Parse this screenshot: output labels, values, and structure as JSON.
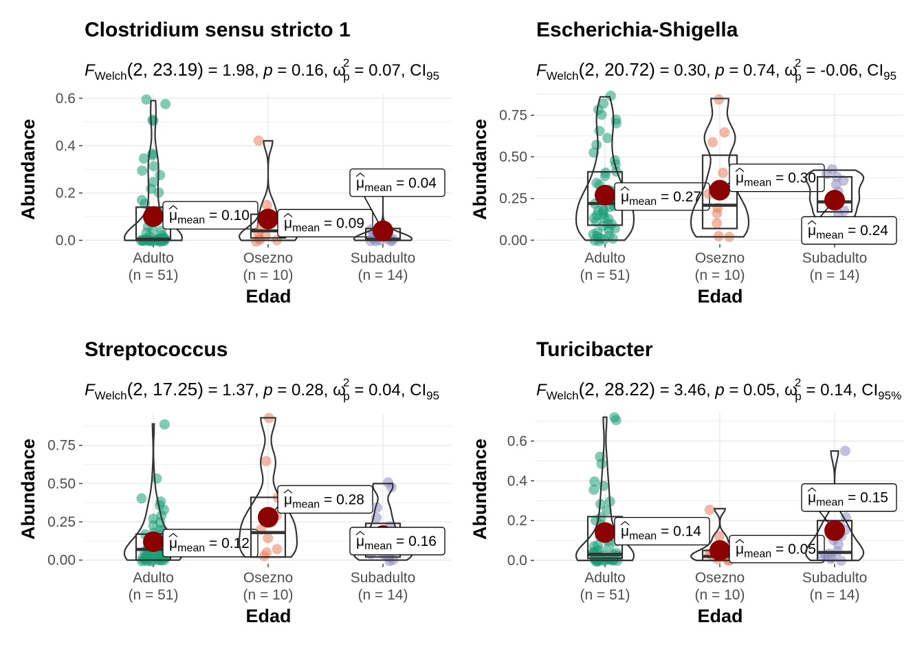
{
  "chart_data": [
    {
      "type": "violin-box-scatter",
      "title": "Clostridium sensu stricto 1",
      "subtitle": {
        "prefix": "F",
        "prefix_sub": "Welch",
        "df": "(2, 23.19)",
        "stat": " = 1.98, ",
        "p_label": "p",
        "p_text": " = 0.16, ",
        "omega": "ω",
        "omega_sup": "2",
        "omega_sub": "p",
        "omega_text": " = 0.07, CI",
        "ci_sub": "95"
      },
      "xlabel": "Edad",
      "ylabel": "Abundance",
      "categories": [
        {
          "name": "Adulto",
          "n_label": "(n = 51)"
        },
        {
          "name": "Osezno",
          "n_label": "(n = 10)"
        },
        {
          "name": "Subadulto",
          "n_label": "(n = 14)"
        }
      ],
      "ylim": [
        -0.01,
        0.62
      ],
      "yticks": [
        {
          "value": 0,
          "label": "0.0"
        },
        {
          "value": 0.2,
          "label": "0.2"
        },
        {
          "value": 0.4,
          "label": "0.4"
        },
        {
          "value": 0.6,
          "label": "0.6"
        }
      ],
      "means": [
        0.1,
        0.09,
        0.04
      ],
      "mean_labels": [
        {
          "mu": "μ",
          "sub": "mean",
          "text": " = 0.10"
        },
        {
          "mu": "μ",
          "sub": "mean",
          "text": " = 0.09"
        },
        {
          "mu": "μ",
          "sub": "mean",
          "text": " = 0.04"
        }
      ],
      "box": [
        {
          "q1": 0.0,
          "median": 0.005,
          "q3": 0.14
        },
        {
          "q1": 0.01,
          "median": 0.04,
          "q3": 0.11
        },
        {
          "q1": 0.0,
          "median": 0.005,
          "q3": 0.05
        }
      ],
      "points": [
        [
          0.59,
          0.58,
          0.51,
          0.5,
          0.37,
          0.36,
          0.34,
          0.31,
          0.3,
          0.28,
          0.25,
          0.22,
          0.2,
          0.17,
          0.15,
          0.12,
          0.1,
          0.08,
          0.06,
          0.05,
          0.04,
          0.03,
          0.02,
          0.02,
          0.01,
          0.01,
          0.01,
          0.005,
          0.005,
          0.005,
          0.003,
          0.003,
          0.002,
          0.002,
          0.002,
          0.001,
          0.001,
          0.001,
          0.001,
          0,
          0,
          0,
          0,
          0,
          0,
          0,
          0,
          0,
          0,
          0,
          0
        ],
        [
          0.42,
          0.15,
          0.1,
          0.05,
          0.03,
          0.02,
          0.01,
          0.005,
          0.0,
          0.0
        ],
        [
          0.25,
          0.05,
          0.03,
          0.02,
          0.01,
          0.01,
          0.005,
          0.003,
          0.002,
          0.001,
          0,
          0,
          0,
          0
        ]
      ]
    },
    {
      "type": "violin-box-scatter",
      "title": "Escherichia-Shigella",
      "subtitle": {
        "prefix": "F",
        "prefix_sub": "Welch",
        "df": "(2, 20.72)",
        "stat": " = 0.30, ",
        "p_label": "p",
        "p_text": " = 0.74, ",
        "omega": "ω",
        "omega_sup": "2",
        "omega_sub": "p",
        "omega_text": " = -0.06, CI",
        "ci_sub": "95"
      },
      "xlabel": "Edad",
      "ylabel": "Abundance",
      "categories": [
        {
          "name": "Adulto",
          "n_label": "(n = 51)"
        },
        {
          "name": "Osezno",
          "n_label": "(n = 10)"
        },
        {
          "name": "Subadulto",
          "n_label": "(n = 14)"
        }
      ],
      "ylim": [
        -0.015,
        0.88
      ],
      "yticks": [
        {
          "value": 0,
          "label": "0.00"
        },
        {
          "value": 0.25,
          "label": "0.25"
        },
        {
          "value": 0.5,
          "label": "0.50"
        },
        {
          "value": 0.75,
          "label": "0.75"
        }
      ],
      "means": [
        0.27,
        0.3,
        0.24
      ],
      "mean_labels": [
        {
          "mu": "μ",
          "sub": "mean",
          "text": " = 0.27"
        },
        {
          "mu": "μ",
          "sub": "mean",
          "text": " = 0.30"
        },
        {
          "mu": "μ",
          "sub": "mean",
          "text": " = 0.24"
        }
      ],
      "box": [
        {
          "q1": 0.09,
          "median": 0.22,
          "q3": 0.41
        },
        {
          "q1": 0.07,
          "median": 0.21,
          "q3": 0.51
        },
        {
          "q1": 0.17,
          "median": 0.23,
          "q3": 0.38
        }
      ],
      "points": [
        [
          0.86,
          0.82,
          0.78,
          0.75,
          0.72,
          0.7,
          0.66,
          0.62,
          0.58,
          0.52,
          0.48,
          0.45,
          0.42,
          0.4,
          0.38,
          0.35,
          0.33,
          0.31,
          0.3,
          0.28,
          0.27,
          0.26,
          0.25,
          0.24,
          0.23,
          0.22,
          0.21,
          0.2,
          0.19,
          0.18,
          0.17,
          0.16,
          0.15,
          0.14,
          0.13,
          0.12,
          0.11,
          0.1,
          0.09,
          0.08,
          0.07,
          0.06,
          0.05,
          0.04,
          0.03,
          0.02,
          0.02,
          0.01,
          0.01,
          0.0,
          0.0
        ],
        [
          0.85,
          0.65,
          0.58,
          0.4,
          0.28,
          0.2,
          0.16,
          0.1,
          0.03,
          0.02
        ],
        [
          0.42,
          0.4,
          0.38,
          0.36,
          0.33,
          0.3,
          0.27,
          0.24,
          0.22,
          0.18,
          0.15,
          0.12,
          0.05,
          0.0
        ]
      ]
    },
    {
      "type": "violin-box-scatter",
      "title": "Streptococcus",
      "subtitle": {
        "prefix": "F",
        "prefix_sub": "Welch",
        "df": "(2, 17.25)",
        "stat": " = 1.37, ",
        "p_label": "p",
        "p_text": " = 0.28, ",
        "omega": "ω",
        "omega_sup": "2",
        "omega_sub": "p",
        "omega_text": " = 0.04, CI",
        "ci_sub": "95"
      },
      "xlabel": "Edad",
      "ylabel": "Abundance",
      "categories": [
        {
          "name": "Adulto",
          "n_label": "(n = 51)"
        },
        {
          "name": "Osezno",
          "n_label": "(n = 10)"
        },
        {
          "name": "Subadulto",
          "n_label": "(n = 14)"
        }
      ],
      "ylim": [
        -0.015,
        0.96
      ],
      "yticks": [
        {
          "value": 0,
          "label": "0.00"
        },
        {
          "value": 0.25,
          "label": "0.25"
        },
        {
          "value": 0.5,
          "label": "0.50"
        },
        {
          "value": 0.75,
          "label": "0.75"
        }
      ],
      "means": [
        0.12,
        0.28,
        0.16
      ],
      "mean_labels": [
        {
          "mu": "μ",
          "sub": "mean",
          "text": " = 0.12"
        },
        {
          "mu": "μ",
          "sub": "mean",
          "text": " = 0.28"
        },
        {
          "mu": "μ",
          "sub": "mean",
          "text": " = 0.16"
        }
      ],
      "box": [
        {
          "q1": 0.0,
          "median": 0.07,
          "q3": 0.17
        },
        {
          "q1": 0.02,
          "median": 0.18,
          "q3": 0.41
        },
        {
          "q1": 0.02,
          "median": 0.08,
          "q3": 0.24
        }
      ],
      "points": [
        [
          0.89,
          0.54,
          0.4,
          0.38,
          0.35,
          0.32,
          0.3,
          0.27,
          0.25,
          0.22,
          0.2,
          0.19,
          0.17,
          0.16,
          0.15,
          0.14,
          0.13,
          0.12,
          0.11,
          0.1,
          0.09,
          0.08,
          0.08,
          0.07,
          0.07,
          0.06,
          0.06,
          0.05,
          0.05,
          0.04,
          0.04,
          0.03,
          0.03,
          0.03,
          0.02,
          0.02,
          0.02,
          0.01,
          0.01,
          0.01,
          0.01,
          0,
          0,
          0,
          0,
          0,
          0,
          0,
          0,
          0,
          0
        ],
        [
          0.93,
          0.64,
          0.4,
          0.3,
          0.25,
          0.2,
          0.15,
          0.08,
          0.04,
          0.02
        ],
        [
          0.5,
          0.47,
          0.35,
          0.28,
          0.22,
          0.18,
          0.14,
          0.1,
          0.08,
          0.05,
          0.03,
          0.02,
          0.01,
          0.0
        ]
      ]
    },
    {
      "type": "violin-box-scatter",
      "title": "Turicibacter",
      "subtitle": {
        "prefix": "F",
        "prefix_sub": "Welch",
        "df": "(2, 28.22)",
        "stat": " = 3.46, ",
        "p_label": "p",
        "p_text": " = 0.05, ",
        "omega": "ω",
        "omega_sup": "2",
        "omega_sub": "p",
        "omega_text": " = 0.14, CI",
        "ci_sub": "95%"
      },
      "xlabel": "Edad",
      "ylabel": "Abundance",
      "categories": [
        {
          "name": "Adulto",
          "n_label": "(n = 51)"
        },
        {
          "name": "Osezno",
          "n_label": "(n = 10)"
        },
        {
          "name": "Subadulto",
          "n_label": "(n = 14)"
        }
      ],
      "ylim": [
        -0.01,
        0.74
      ],
      "yticks": [
        {
          "value": 0,
          "label": "0.0"
        },
        {
          "value": 0.2,
          "label": "0.2"
        },
        {
          "value": 0.4,
          "label": "0.4"
        },
        {
          "value": 0.6,
          "label": "0.6"
        }
      ],
      "means": [
        0.14,
        0.05,
        0.15
      ],
      "mean_labels": [
        {
          "mu": "μ",
          "sub": "mean",
          "text": " = 0.14"
        },
        {
          "mu": "μ",
          "sub": "mean",
          "text": " = 0.05"
        },
        {
          "mu": "μ",
          "sub": "mean",
          "text": " = 0.15"
        }
      ],
      "box": [
        {
          "q1": 0.01,
          "median": 0.03,
          "q3": 0.22
        },
        {
          "q1": 0.0,
          "median": 0.02,
          "q3": 0.05
        },
        {
          "q1": 0.0,
          "median": 0.04,
          "q3": 0.2
        }
      ],
      "points": [
        [
          0.72,
          0.71,
          0.52,
          0.48,
          0.39,
          0.38,
          0.35,
          0.3,
          0.28,
          0.25,
          0.22,
          0.2,
          0.18,
          0.16,
          0.14,
          0.12,
          0.1,
          0.09,
          0.08,
          0.07,
          0.06,
          0.05,
          0.05,
          0.04,
          0.04,
          0.03,
          0.03,
          0.03,
          0.02,
          0.02,
          0.02,
          0.02,
          0.01,
          0.01,
          0.01,
          0.01,
          0.01,
          0.005,
          0.005,
          0.005,
          0.003,
          0.003,
          0.002,
          0.001,
          0,
          0,
          0,
          0,
          0,
          0,
          0
        ],
        [
          0.26,
          0.12,
          0.08,
          0.05,
          0.04,
          0.03,
          0.02,
          0.01,
          0.0,
          0.0
        ],
        [
          0.55,
          0.22,
          0.18,
          0.15,
          0.12,
          0.1,
          0.08,
          0.05,
          0.04,
          0.03,
          0.02,
          0.01,
          0.005,
          0.0
        ]
      ]
    }
  ],
  "colors": {
    "groups": [
      "#1b9e77",
      "#e9805e",
      "#8f8cc5"
    ],
    "mean_point": "#8b0000",
    "grid": "#ebebeb",
    "outline": "#333333"
  }
}
